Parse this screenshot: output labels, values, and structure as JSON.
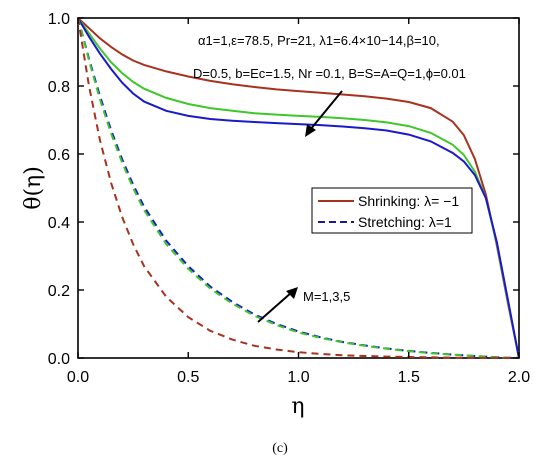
{
  "chart_data": {
    "type": "line",
    "xlabel": "η",
    "ylabel": "θ(η)",
    "xlim": [
      0.0,
      2.0
    ],
    "ylim": [
      0.0,
      1.0
    ],
    "x_ticks": [
      "0.0",
      "0.5",
      "1.0",
      "1.5",
      "2.0"
    ],
    "y_ticks": [
      "0.0",
      "0.2",
      "0.4",
      "0.6",
      "0.8",
      "1.0"
    ],
    "grid": false,
    "legend_position": "center-right",
    "legend": [
      {
        "label": "Shrinking: λ= −1",
        "style": "solid"
      },
      {
        "label": "Stretching: λ=1",
        "style": "dashed"
      }
    ],
    "params_line1": "α1=1,ε=78.5, Pr=21, λ1=6.4×10−14,β=10,",
    "params_line2": "D=0.5, b=Ec=1.5, Nr =0.1, B=S=A=Q=1,ϕ=0.01",
    "annotation": "M=1,3,5",
    "caption": "(c)",
    "colors": {
      "M1": "#1a1acc",
      "M3": "#3fc72a",
      "M5": "#a8321e",
      "legend_line": "#1a1a99"
    },
    "x": [
      0.0,
      0.05,
      0.1,
      0.15,
      0.2,
      0.25,
      0.3,
      0.4,
      0.5,
      0.6,
      0.7,
      0.8,
      0.9,
      1.0,
      1.1,
      1.2,
      1.3,
      1.4,
      1.5,
      1.6,
      1.7,
      1.75,
      1.8,
      1.85,
      1.9,
      1.95,
      2.0
    ],
    "series": [
      {
        "style": "solid",
        "color": "#a8321e",
        "values": [
          1.0,
          0.97,
          0.94,
          0.915,
          0.893,
          0.875,
          0.862,
          0.843,
          0.828,
          0.815,
          0.805,
          0.797,
          0.79,
          0.785,
          0.78,
          0.775,
          0.77,
          0.763,
          0.753,
          0.735,
          0.695,
          0.655,
          0.585,
          0.48,
          0.33,
          0.16,
          0.0
        ]
      },
      {
        "style": "solid",
        "color": "#3fc72a",
        "values": [
          1.0,
          0.955,
          0.91,
          0.87,
          0.838,
          0.812,
          0.792,
          0.765,
          0.747,
          0.735,
          0.727,
          0.72,
          0.716,
          0.712,
          0.709,
          0.705,
          0.7,
          0.693,
          0.682,
          0.662,
          0.627,
          0.597,
          0.548,
          0.47,
          0.335,
          0.165,
          0.0
        ]
      },
      {
        "style": "solid",
        "color": "#1a1acc",
        "values": [
          1.0,
          0.945,
          0.895,
          0.85,
          0.81,
          0.778,
          0.754,
          0.727,
          0.712,
          0.703,
          0.698,
          0.694,
          0.691,
          0.688,
          0.685,
          0.681,
          0.676,
          0.669,
          0.657,
          0.637,
          0.603,
          0.578,
          0.538,
          0.47,
          0.34,
          0.17,
          0.0
        ]
      },
      {
        "style": "dashed",
        "color": "#1a1acc",
        "values": [
          1.0,
          0.88,
          0.77,
          0.67,
          0.585,
          0.51,
          0.445,
          0.345,
          0.27,
          0.21,
          0.165,
          0.128,
          0.1,
          0.078,
          0.061,
          0.047,
          0.037,
          0.028,
          0.021,
          0.015,
          0.01,
          0.008,
          0.006,
          0.004,
          0.002,
          0.001,
          0.0
        ]
      },
      {
        "style": "dashed",
        "color": "#3fc72a",
        "values": [
          1.0,
          0.875,
          0.76,
          0.66,
          0.575,
          0.5,
          0.435,
          0.335,
          0.262,
          0.204,
          0.16,
          0.124,
          0.097,
          0.075,
          0.059,
          0.046,
          0.036,
          0.027,
          0.02,
          0.014,
          0.01,
          0.008,
          0.006,
          0.004,
          0.002,
          0.001,
          0.0
        ]
      },
      {
        "style": "dashed",
        "color": "#a8321e",
        "values": [
          1.0,
          0.8,
          0.64,
          0.515,
          0.415,
          0.335,
          0.27,
          0.18,
          0.12,
          0.08,
          0.054,
          0.036,
          0.025,
          0.017,
          0.012,
          0.008,
          0.006,
          0.004,
          0.003,
          0.002,
          0.001,
          0.001,
          0.0005,
          0.0003,
          0.0002,
          0.0001,
          0.0
        ]
      }
    ]
  }
}
